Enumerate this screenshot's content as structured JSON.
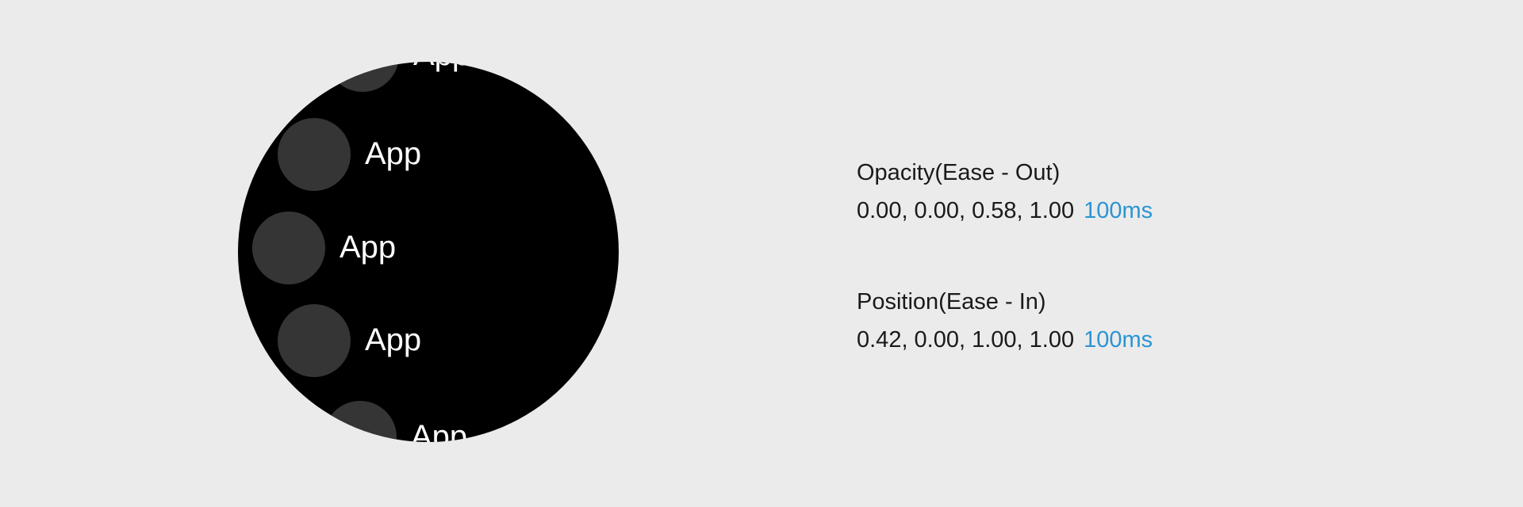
{
  "watch": {
    "apps": [
      {
        "label": "App"
      },
      {
        "label": "App"
      },
      {
        "label": "App"
      },
      {
        "label": "App"
      },
      {
        "label": "App"
      }
    ]
  },
  "curves": [
    {
      "title": "Opacity(Ease - Out)",
      "values": "0.00, 0.00, 0.58, 1.00",
      "duration": "100ms"
    },
    {
      "title": "Position(Ease - In)",
      "values": "0.42, 0.00, 1.00, 1.00",
      "duration": "100ms"
    }
  ],
  "colors": {
    "background": "#ebebeb",
    "watch_face": "#000000",
    "app_icon": "#353535",
    "app_label": "#ffffff",
    "text": "#1a1a1a",
    "duration_accent": "#2a95d3"
  }
}
